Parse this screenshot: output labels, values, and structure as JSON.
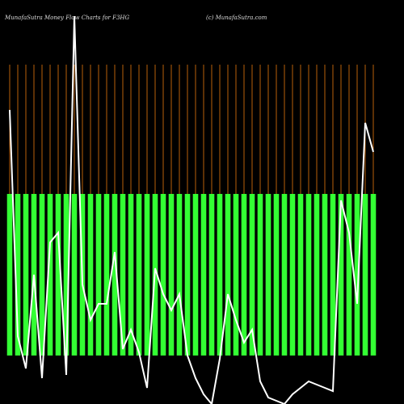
{
  "chart_data": {
    "type": "bar",
    "title": "MunafaSutra  Money Flow  Charts for F3HG",
    "subtitle": "(c) MunafaSutra.com",
    "categories": [
      null,
      null,
      null,
      null,
      null,
      null,
      null,
      null,
      null,
      null,
      null,
      null,
      null,
      null,
      null,
      null,
      null,
      null,
      null,
      null,
      null,
      null,
      null,
      null,
      null,
      null,
      null,
      null,
      null,
      null,
      null,
      null,
      null,
      null,
      null,
      null,
      null,
      null,
      null,
      null,
      null,
      null,
      null,
      null,
      null,
      null
    ],
    "series": [
      {
        "type": "bar",
        "color": "#33ff33",
        "values": [
          50,
          50,
          50,
          50,
          50,
          50,
          50,
          50,
          50,
          50,
          50,
          50,
          50,
          50,
          50,
          50,
          50,
          50,
          50,
          50,
          50,
          50,
          50,
          50,
          50,
          50,
          50,
          50,
          50,
          50,
          50,
          50,
          50,
          50,
          50,
          50,
          50,
          50,
          50,
          50,
          50,
          50,
          50,
          50,
          50,
          50
        ]
      },
      {
        "type": "line",
        "color": "#ffffff",
        "values": [
          76,
          6,
          -4,
          25,
          -7,
          35,
          38,
          -6,
          105,
          22,
          11,
          16,
          16,
          32,
          2,
          8,
          1,
          -10,
          27,
          19,
          14,
          19,
          0,
          -7,
          -12,
          -15,
          -1,
          19,
          11,
          4,
          8,
          -8,
          -13,
          -14,
          -15,
          -12,
          -10,
          -8,
          -9,
          -10,
          -11,
          48,
          38,
          16,
          72,
          63
        ]
      }
    ],
    "ylim": [
      -15,
      105
    ]
  }
}
